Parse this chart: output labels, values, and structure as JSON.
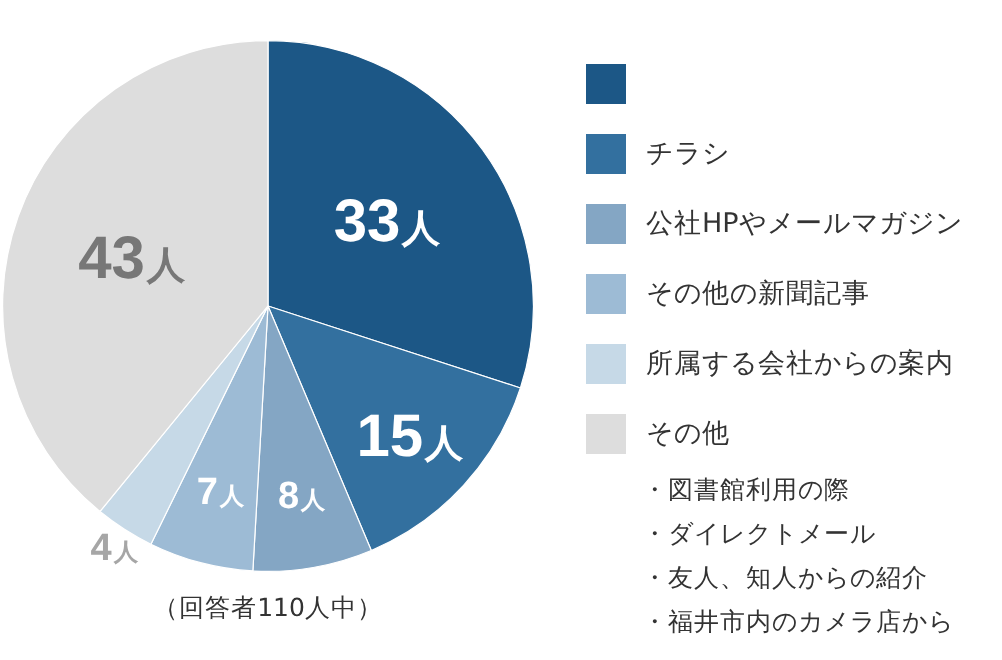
{
  "chart_data": {
    "type": "pie",
    "categories": [
      null,
      "チラシ",
      "公社HPやメールマガジン",
      "その他の新聞記事",
      "所属する会社からの案内",
      "その他"
    ],
    "values": [
      33,
      15,
      8,
      7,
      4,
      43
    ],
    "colors": [
      "#1c5786",
      "#33709f",
      "#84a6c4",
      "#9dbbd5",
      "#c6d9e7",
      "#dddddd"
    ],
    "value_labels": [
      "33人",
      "15人",
      "8人",
      "7人",
      "4人",
      "43人"
    ],
    "legend": "right",
    "annotations": [
      "・図書館利用の際",
      "・ダイレクトメール",
      "・友人、知人からの紹介",
      "・福井市内のカメラ店から",
      "（回答者110人中）"
    ]
  }
}
